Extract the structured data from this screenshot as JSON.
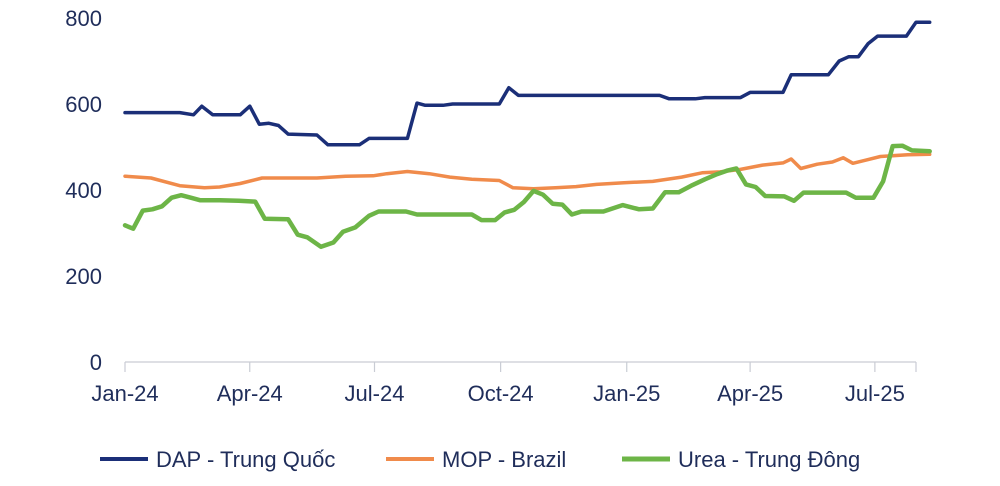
{
  "chart_data": {
    "type": "line",
    "title": "",
    "xlabel": "",
    "ylabel": "",
    "ylim": [
      0,
      800
    ],
    "y_ticks": [
      0,
      200,
      400,
      600,
      800
    ],
    "x_ticks": [
      "Jan-24",
      "Apr-24",
      "Jul-24",
      "Oct-24",
      "Jan-25",
      "Apr-25",
      "Jul-25"
    ],
    "x_range": [
      "2024-01-01",
      "2025-07-31"
    ],
    "grid": false,
    "legend_position": "bottom",
    "series": [
      {
        "name": "DAP - Trung Quốc",
        "color": "#1b2f78",
        "points": [
          [
            "2024-01-01",
            580
          ],
          [
            "2024-02-10",
            580
          ],
          [
            "2024-02-20",
            575
          ],
          [
            "2024-02-26",
            595
          ],
          [
            "2024-03-05",
            575
          ],
          [
            "2024-03-25",
            575
          ],
          [
            "2024-04-01",
            595
          ],
          [
            "2024-04-08",
            553
          ],
          [
            "2024-04-15",
            555
          ],
          [
            "2024-04-22",
            550
          ],
          [
            "2024-04-29",
            530
          ],
          [
            "2024-05-20",
            528
          ],
          [
            "2024-05-28",
            505
          ],
          [
            "2024-06-20",
            505
          ],
          [
            "2024-06-27",
            520
          ],
          [
            "2024-07-25",
            520
          ],
          [
            "2024-08-01",
            602
          ],
          [
            "2024-08-07",
            597
          ],
          [
            "2024-08-20",
            597
          ],
          [
            "2024-08-27",
            600
          ],
          [
            "2024-09-30",
            600
          ],
          [
            "2024-10-07",
            638
          ],
          [
            "2024-10-14",
            620
          ],
          [
            "2024-11-20",
            620
          ],
          [
            "2025-01-25",
            620
          ],
          [
            "2025-02-01",
            612
          ],
          [
            "2025-02-20",
            612
          ],
          [
            "2025-02-27",
            615
          ],
          [
            "2025-03-25",
            615
          ],
          [
            "2025-04-01",
            627
          ],
          [
            "2025-04-25",
            627
          ],
          [
            "2025-05-01",
            668
          ],
          [
            "2025-05-28",
            668
          ],
          [
            "2025-06-05",
            700
          ],
          [
            "2025-06-12",
            710
          ],
          [
            "2025-06-19",
            710
          ],
          [
            "2025-06-26",
            740
          ],
          [
            "2025-07-03",
            758
          ],
          [
            "2025-07-24",
            758
          ],
          [
            "2025-07-31",
            790
          ],
          [
            "2025-08-10",
            790
          ]
        ]
      },
      {
        "name": "MOP - Brazil",
        "color": "#f08b4b",
        "points": [
          [
            "2024-01-01",
            432
          ],
          [
            "2024-01-20",
            428
          ],
          [
            "2024-02-10",
            410
          ],
          [
            "2024-02-28",
            405
          ],
          [
            "2024-03-10",
            407
          ],
          [
            "2024-03-25",
            415
          ],
          [
            "2024-04-10",
            428
          ],
          [
            "2024-05-20",
            428
          ],
          [
            "2024-06-10",
            432
          ],
          [
            "2024-06-30",
            433
          ],
          [
            "2024-07-10",
            438
          ],
          [
            "2024-07-25",
            443
          ],
          [
            "2024-08-10",
            438
          ],
          [
            "2024-08-25",
            430
          ],
          [
            "2024-09-10",
            425
          ],
          [
            "2024-09-30",
            422
          ],
          [
            "2024-10-10",
            405
          ],
          [
            "2024-10-25",
            403
          ],
          [
            "2024-11-10",
            405
          ],
          [
            "2024-11-25",
            408
          ],
          [
            "2024-12-10",
            413
          ],
          [
            "2024-12-30",
            417
          ],
          [
            "2025-01-20",
            420
          ],
          [
            "2025-02-10",
            430
          ],
          [
            "2025-02-25",
            440
          ],
          [
            "2025-03-10",
            442
          ],
          [
            "2025-03-25",
            448
          ],
          [
            "2025-04-10",
            458
          ],
          [
            "2025-04-25",
            463
          ],
          [
            "2025-05-01",
            472
          ],
          [
            "2025-05-08",
            450
          ],
          [
            "2025-05-20",
            460
          ],
          [
            "2025-05-31",
            465
          ],
          [
            "2025-06-08",
            475
          ],
          [
            "2025-06-15",
            462
          ],
          [
            "2025-06-25",
            470
          ],
          [
            "2025-07-05",
            478
          ],
          [
            "2025-07-25",
            482
          ],
          [
            "2025-08-10",
            483
          ]
        ]
      },
      {
        "name": "Urea - Trung Đông",
        "color": "#6db547",
        "points": [
          [
            "2024-01-01",
            318
          ],
          [
            "2024-01-07",
            310
          ],
          [
            "2024-01-14",
            352
          ],
          [
            "2024-01-21",
            355
          ],
          [
            "2024-01-28",
            362
          ],
          [
            "2024-02-04",
            382
          ],
          [
            "2024-02-11",
            388
          ],
          [
            "2024-02-18",
            382
          ],
          [
            "2024-02-25",
            376
          ],
          [
            "2024-03-10",
            376
          ],
          [
            "2024-03-24",
            375
          ],
          [
            "2024-04-05",
            373
          ],
          [
            "2024-04-12",
            333
          ],
          [
            "2024-04-29",
            332
          ],
          [
            "2024-05-06",
            296
          ],
          [
            "2024-05-13",
            290
          ],
          [
            "2024-05-23",
            268
          ],
          [
            "2024-06-01",
            278
          ],
          [
            "2024-06-08",
            303
          ],
          [
            "2024-06-17",
            313
          ],
          [
            "2024-06-27",
            340
          ],
          [
            "2024-07-04",
            350
          ],
          [
            "2024-07-24",
            350
          ],
          [
            "2024-08-01",
            343
          ],
          [
            "2024-09-10",
            343
          ],
          [
            "2024-09-17",
            330
          ],
          [
            "2024-09-27",
            330
          ],
          [
            "2024-10-04",
            348
          ],
          [
            "2024-10-11",
            354
          ],
          [
            "2024-10-18",
            372
          ],
          [
            "2024-10-25",
            398
          ],
          [
            "2024-11-01",
            389
          ],
          [
            "2024-11-08",
            368
          ],
          [
            "2024-11-15",
            366
          ],
          [
            "2024-11-22",
            343
          ],
          [
            "2024-11-29",
            350
          ],
          [
            "2024-12-15",
            350
          ],
          [
            "2024-12-29",
            365
          ],
          [
            "2025-01-10",
            355
          ],
          [
            "2025-01-20",
            357
          ],
          [
            "2025-01-29",
            395
          ],
          [
            "2025-02-08",
            395
          ],
          [
            "2025-02-17",
            410
          ],
          [
            "2025-02-27",
            425
          ],
          [
            "2025-03-08",
            437
          ],
          [
            "2025-03-15",
            445
          ],
          [
            "2025-03-22",
            450
          ],
          [
            "2025-03-29",
            413
          ],
          [
            "2025-04-05",
            407
          ],
          [
            "2025-04-12",
            386
          ],
          [
            "2025-04-26",
            385
          ],
          [
            "2025-05-03",
            375
          ],
          [
            "2025-05-10",
            394
          ],
          [
            "2025-06-10",
            394
          ],
          [
            "2025-06-17",
            382
          ],
          [
            "2025-06-30",
            382
          ],
          [
            "2025-07-07",
            420
          ],
          [
            "2025-07-14",
            502
          ],
          [
            "2025-07-21",
            503
          ],
          [
            "2025-07-28",
            492
          ],
          [
            "2025-08-10",
            490
          ]
        ]
      }
    ]
  }
}
